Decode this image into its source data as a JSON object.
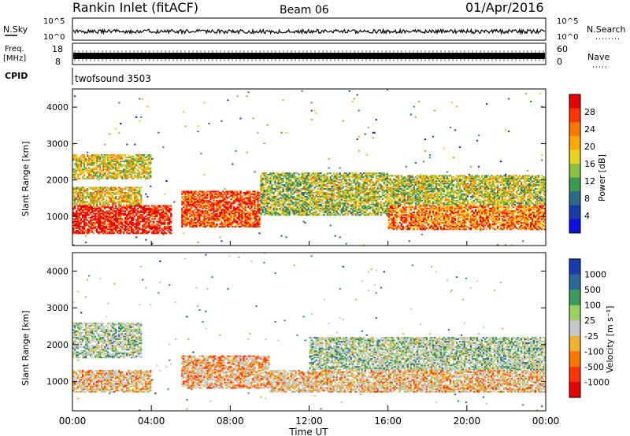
{
  "header": {
    "station": "Rankin Inlet (fitACF)",
    "beam": "Beam 06",
    "date": "01/Apr/2016"
  },
  "top_panels": {
    "nsky_label": "N.Sky",
    "nsky_ticks": [
      "10^5",
      "10^0"
    ],
    "nsearch_label": "N.Search",
    "nsearch_ticks": [
      "10^5",
      "10^0"
    ],
    "freq_label_1": "Freq.",
    "freq_label_2": "[MHz]",
    "freq_ticks": [
      "18",
      "8"
    ],
    "nave_label": "Nave",
    "nave_ticks": [
      "60",
      "0"
    ],
    "cpid_label": "CPID",
    "cpid_text": "twofsound 3503"
  },
  "chart_data": [
    {
      "type": "heatmap",
      "title": "",
      "quantity": "Power",
      "xlabel": "",
      "ylabel": "Slant Range [km]",
      "xlim": [
        0,
        24
      ],
      "ylim": [
        200,
        4500
      ],
      "yticks": [
        "1000",
        "2000",
        "3000",
        "4000"
      ],
      "colorbar_label": "Power [dB]",
      "colorbar_ticks": [
        "28",
        "24",
        "20",
        "16",
        "12",
        "8",
        "4"
      ],
      "colorbar_colors": [
        "#e60000",
        "#ff3300",
        "#ff7700",
        "#ffaa00",
        "#e6d020",
        "#88c040",
        "#3a9a50",
        "#2a6a8a",
        "#1a3aa8",
        "#0a10e0"
      ],
      "bands": [
        {
          "t0": 0.0,
          "t1": 5.0,
          "r0": 500,
          "r1": 1300,
          "level": 0.95
        },
        {
          "t0": 0.0,
          "t1": 3.5,
          "r0": 1300,
          "r1": 1800,
          "level": 0.6
        },
        {
          "t0": 0.0,
          "t1": 4.0,
          "r0": 2000,
          "r1": 2700,
          "level": 0.55
        },
        {
          "t0": 5.5,
          "t1": 9.5,
          "r0": 700,
          "r1": 1700,
          "level": 0.85
        },
        {
          "t0": 9.5,
          "t1": 16.0,
          "r0": 1000,
          "r1": 2200,
          "level": 0.45
        },
        {
          "t0": 16.0,
          "t1": 24.0,
          "r0": 600,
          "r1": 1300,
          "level": 0.75
        },
        {
          "t0": 12.0,
          "t1": 24.0,
          "r0": 1300,
          "r1": 2100,
          "level": 0.5
        }
      ]
    },
    {
      "type": "heatmap",
      "title": "",
      "quantity": "Velocity",
      "xlabel": "Time UT",
      "ylabel": "Slant Range [km]",
      "xlim": [
        0,
        24
      ],
      "ylim": [
        200,
        4500
      ],
      "xticks": [
        "00:00",
        "04:00",
        "08:00",
        "12:00",
        "16:00",
        "20:00",
        "00:00"
      ],
      "yticks": [
        "1000",
        "2000",
        "3000",
        "4000"
      ],
      "colorbar_label": "Velocity [m s⁻¹]",
      "colorbar_ticks": [
        "1000",
        "500",
        "100",
        "25",
        "-25",
        "-100",
        "-500",
        "-1000"
      ],
      "colorbar_colors": [
        "#1a3ab0",
        "#2a6a9a",
        "#3a9a5a",
        "#9ad060",
        "#c8c8c8",
        "#f0b030",
        "#ff7700",
        "#ff3300",
        "#e60000"
      ],
      "bands": [
        {
          "t0": 0.0,
          "t1": 4.0,
          "r0": 700,
          "r1": 1300,
          "level": 0.7
        },
        {
          "t0": 0.0,
          "t1": 3.5,
          "r0": 1600,
          "r1": 2600,
          "level": 0.45
        },
        {
          "t0": 5.5,
          "t1": 10.0,
          "r0": 800,
          "r1": 1700,
          "level": 0.75
        },
        {
          "t0": 10.0,
          "t1": 24.0,
          "r0": 700,
          "r1": 1300,
          "level": 0.7
        },
        {
          "t0": 12.0,
          "t1": 24.0,
          "r0": 1300,
          "r1": 2200,
          "level": 0.45
        }
      ]
    }
  ]
}
